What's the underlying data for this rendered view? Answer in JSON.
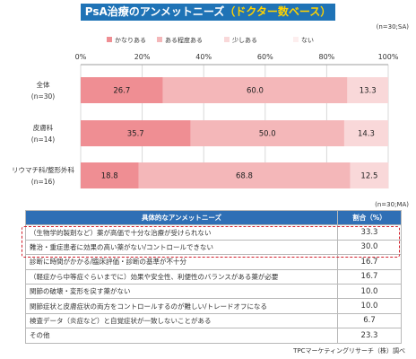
{
  "title": {
    "prefix": "PsA治療のアンメットニーズ",
    "highlight": "（ドクター数ベース）"
  },
  "note_top": "(n=30;SA)",
  "note_table": "(n=30;MA)",
  "footer": "TPCマーケティングリサーチ（株）調べ",
  "chart_data": {
    "type": "bar",
    "orientation": "horizontal",
    "stacked": true,
    "categories": [
      {
        "label": "全体",
        "n": "(n=30)"
      },
      {
        "label": "皮膚科",
        "n": "(n=14)"
      },
      {
        "label": "リウマチ科/整形外科",
        "n": "(n=16)"
      }
    ],
    "series": [
      {
        "name": "かなりある",
        "values": [
          26.7,
          35.7,
          18.8
        ],
        "color": "#ef8e93"
      },
      {
        "name": "ある程度ある",
        "values": [
          60.0,
          50.0,
          68.8
        ],
        "color": "#f4b7b9"
      },
      {
        "name": "少しある",
        "values": [
          13.3,
          14.3,
          12.5
        ],
        "color": "#f9d8d9"
      },
      {
        "name": "ない",
        "values": [
          0,
          0,
          0
        ],
        "color": "#fdeeee"
      }
    ],
    "labels": [
      [
        "26.7",
        "60.0",
        "13.3"
      ],
      [
        "35.7",
        "50.0",
        "14.3"
      ],
      [
        "18.8",
        "68.8",
        "12.5"
      ]
    ],
    "xticks": [
      "0%",
      "20%",
      "40%",
      "60%",
      "80%",
      "100%"
    ],
    "xlim": [
      0,
      100
    ],
    "grid": true,
    "legend": "top"
  },
  "table": {
    "headers": [
      "具体的なアンメットニーズ",
      "割合（%）"
    ],
    "rows": [
      [
        "（生物学的製剤など）薬が高価で十分な治療が受けられない",
        "33.3"
      ],
      [
        "難治・重症患者に効果の高い薬がない/コントロールできない",
        "30.0"
      ],
      [
        "診断に時間がかかる/臨床評価・診断の基準が不十分",
        "16.7"
      ],
      [
        "（軽症から中等症ぐらいまでに）効果や安全性、利便性のバランスがある薬が必要",
        "16.7"
      ],
      [
        "関節の破壊・変形を戻す薬がない",
        "10.0"
      ],
      [
        "関節症状と皮膚症状の両方をコントロールするのが難しい/トレードオフになる",
        "10.0"
      ],
      [
        "検査データ（炎症など）と自覚症状が一致しないことがある",
        "6.7"
      ],
      [
        "その他",
        "23.3"
      ]
    ]
  }
}
